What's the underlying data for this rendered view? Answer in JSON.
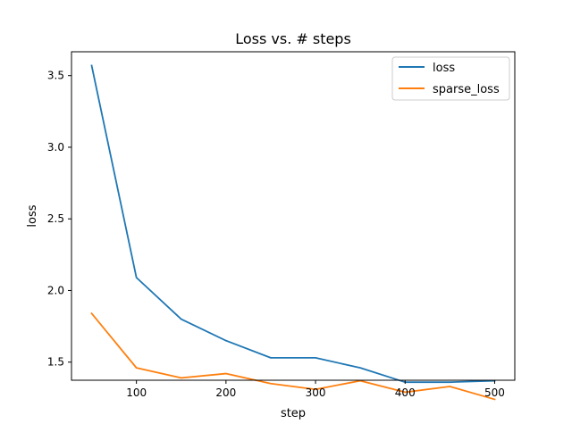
{
  "chart_data": {
    "type": "line",
    "title": "Loss vs. # steps",
    "xlabel": "step",
    "ylabel": "loss",
    "x": [
      50,
      100,
      150,
      200,
      250,
      300,
      350,
      400,
      450,
      500
    ],
    "series": [
      {
        "name": "loss",
        "color": "#1f77b4",
        "values": [
          3.57,
          2.09,
          1.8,
          1.65,
          1.53,
          1.53,
          1.46,
          1.36,
          1.36,
          1.37
        ]
      },
      {
        "name": "sparse_loss",
        "color": "#ff7f0e",
        "values": [
          1.84,
          1.46,
          1.39,
          1.42,
          1.35,
          1.31,
          1.37,
          1.29,
          1.33,
          1.24
        ]
      }
    ],
    "xlim": [
      27.5,
      522.5
    ],
    "ylim": [
      1.3736,
      3.6664
    ],
    "xticks": [
      100,
      200,
      300,
      400,
      500
    ],
    "xtick_labels": [
      "100",
      "200",
      "300",
      "400",
      "500"
    ],
    "yticks": [
      1.5,
      2.0,
      2.5,
      3.0,
      3.5
    ],
    "ytick_labels": [
      "1.5",
      "2.0",
      "2.5",
      "3.0",
      "3.5"
    ],
    "grid": false,
    "legend_position": "top-right"
  }
}
